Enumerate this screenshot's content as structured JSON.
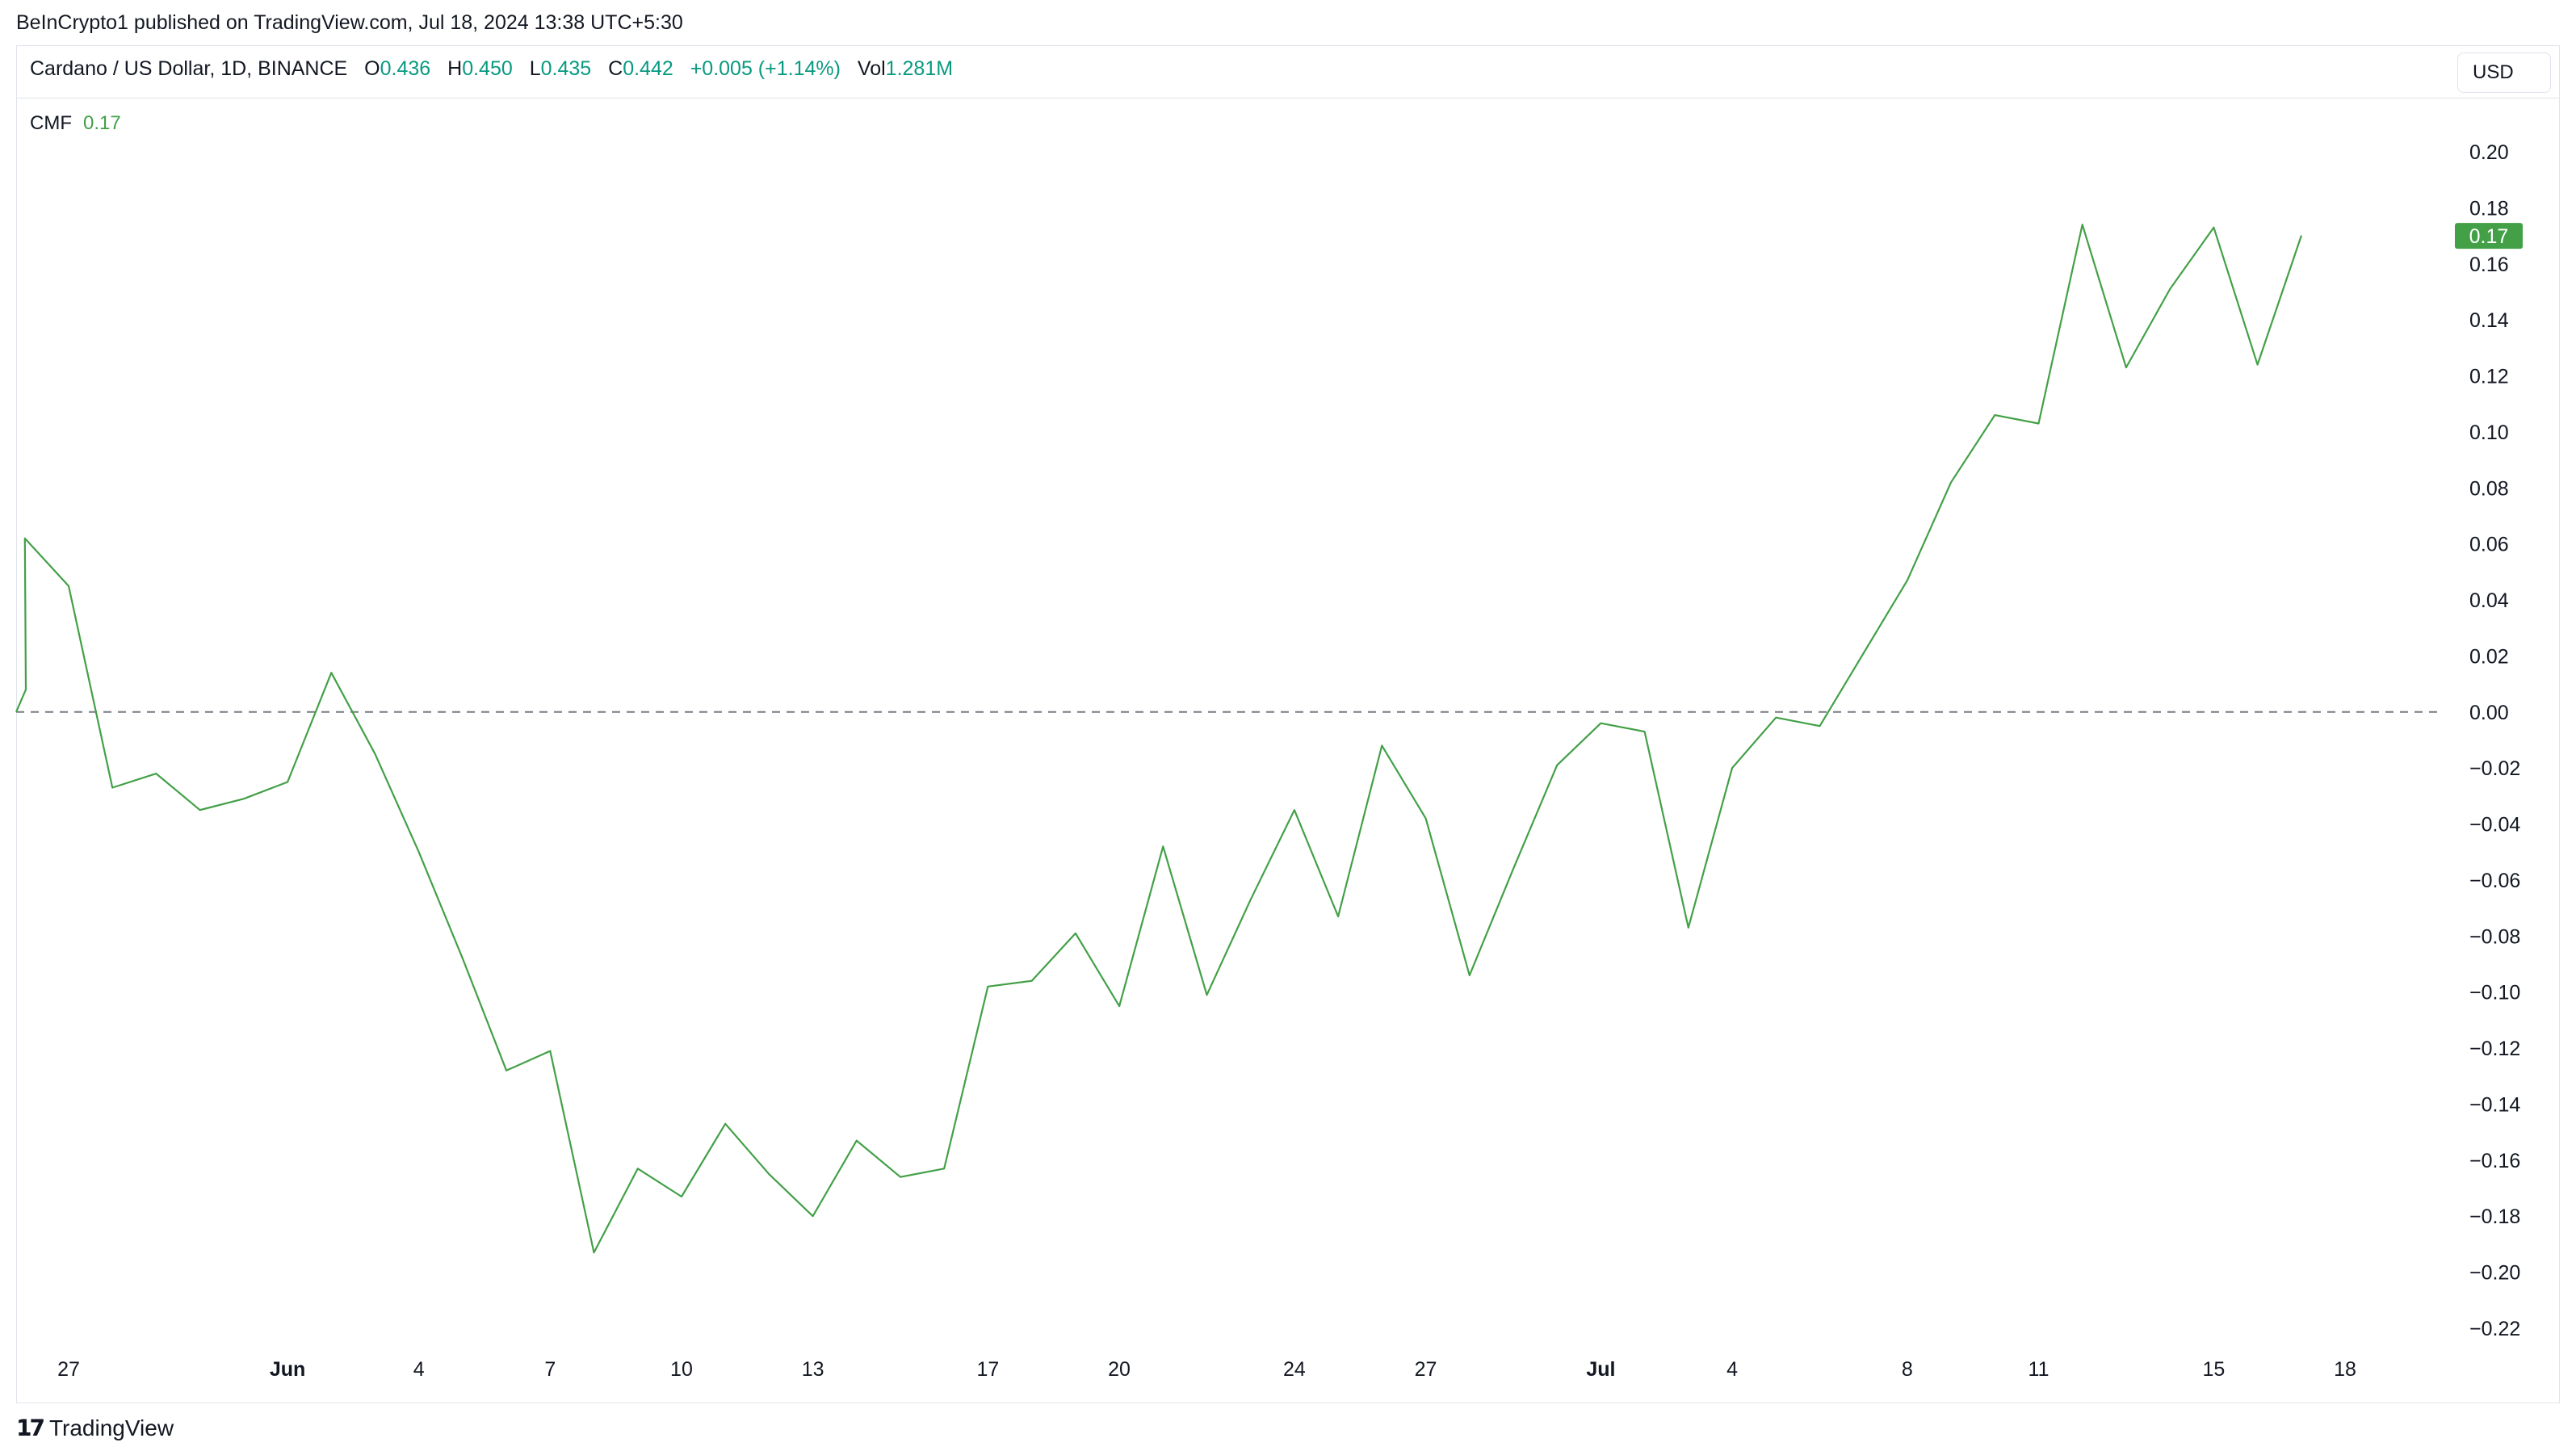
{
  "published_line": "BeInCrypto1 published on TradingView.com, Jul 18, 2024 13:38 UTC+5:30",
  "header": {
    "symbol": "Cardano / US Dollar, 1D, BINANCE",
    "open_label": "O",
    "open": "0.436",
    "high_label": "H",
    "high": "0.450",
    "low_label": "L",
    "low": "0.435",
    "close_label": "C",
    "close": "0.442",
    "change": "+0.005 (+1.14%)",
    "vol_label": "Vol",
    "vol": "1.281M"
  },
  "currency_button": "USD",
  "indicator": {
    "name": "CMF",
    "value": "0.17"
  },
  "footer": {
    "brand": "TradingView",
    "logo_icon": "tradingview-logo-icon"
  },
  "colors": {
    "line": "#43a047",
    "badge": "#43a047",
    "zero_line": "#787b86",
    "positive": "#089981"
  },
  "chart_data": {
    "type": "line",
    "title": "CMF",
    "ylim": [
      -0.23,
      0.21
    ],
    "y_ticks": [
      0.2,
      0.18,
      0.16,
      0.14,
      0.12,
      0.1,
      0.08,
      0.06,
      0.04,
      0.02,
      0.0,
      -0.02,
      -0.04,
      -0.06,
      -0.08,
      -0.1,
      -0.12,
      -0.14,
      -0.16,
      -0.18,
      -0.2,
      -0.22
    ],
    "y_tick_labels": [
      "0.20",
      "0.18",
      "0.16",
      "0.14",
      "0.12",
      "0.10",
      "0.08",
      "0.06",
      "0.04",
      "0.02",
      "0.00",
      "−0.02",
      "−0.04",
      "−0.06",
      "−0.08",
      "−0.10",
      "−0.12",
      "−0.14",
      "−0.16",
      "−0.18",
      "−0.20",
      "−0.22"
    ],
    "x_tick_labels": [
      {
        "label": "27",
        "date": "2024-05-27",
        "bold": false
      },
      {
        "label": "Jun",
        "date": "2024-06-01",
        "bold": true
      },
      {
        "label": "4",
        "date": "2024-06-04",
        "bold": false
      },
      {
        "label": "7",
        "date": "2024-06-07",
        "bold": false
      },
      {
        "label": "10",
        "date": "2024-06-10",
        "bold": false
      },
      {
        "label": "13",
        "date": "2024-06-13",
        "bold": false
      },
      {
        "label": "17",
        "date": "2024-06-17",
        "bold": false
      },
      {
        "label": "20",
        "date": "2024-06-20",
        "bold": false
      },
      {
        "label": "24",
        "date": "2024-06-24",
        "bold": false
      },
      {
        "label": "27",
        "date": "2024-06-27",
        "bold": false
      },
      {
        "label": "Jul",
        "date": "2024-07-01",
        "bold": true
      },
      {
        "label": "4",
        "date": "2024-07-04",
        "bold": false
      },
      {
        "label": "8",
        "date": "2024-07-08",
        "bold": false
      },
      {
        "label": "11",
        "date": "2024-07-11",
        "bold": false
      },
      {
        "label": "15",
        "date": "2024-07-15",
        "bold": false
      },
      {
        "label": "18",
        "date": "2024-07-18",
        "bold": false
      }
    ],
    "zero_line": 0.0,
    "last_value_label": "0.17",
    "series": [
      {
        "values": [
          {
            "x": "2024-05-26",
            "y": 0.062
          },
          {
            "x": "2024-05-27",
            "y": 0.045
          },
          {
            "x": "2024-05-28",
            "y": -0.027
          },
          {
            "x": "2024-05-29",
            "y": -0.022
          },
          {
            "x": "2024-05-30",
            "y": -0.035
          },
          {
            "x": "2024-05-31",
            "y": -0.031
          },
          {
            "x": "2024-06-01",
            "y": -0.025
          },
          {
            "x": "2024-06-02",
            "y": 0.014
          },
          {
            "x": "2024-06-03",
            "y": -0.015
          },
          {
            "x": "2024-06-04",
            "y": -0.05
          },
          {
            "x": "2024-06-05",
            "y": -0.088
          },
          {
            "x": "2024-06-06",
            "y": -0.128
          },
          {
            "x": "2024-06-07",
            "y": -0.121
          },
          {
            "x": "2024-06-08",
            "y": -0.193
          },
          {
            "x": "2024-06-09",
            "y": -0.163
          },
          {
            "x": "2024-06-10",
            "y": -0.173
          },
          {
            "x": "2024-06-11",
            "y": -0.147
          },
          {
            "x": "2024-06-12",
            "y": -0.165
          },
          {
            "x": "2024-06-13",
            "y": -0.18
          },
          {
            "x": "2024-06-14",
            "y": -0.153
          },
          {
            "x": "2024-06-15",
            "y": -0.166
          },
          {
            "x": "2024-06-16",
            "y": -0.163
          },
          {
            "x": "2024-06-17",
            "y": -0.098
          },
          {
            "x": "2024-06-18",
            "y": -0.096
          },
          {
            "x": "2024-06-19",
            "y": -0.079
          },
          {
            "x": "2024-06-20",
            "y": -0.105
          },
          {
            "x": "2024-06-21",
            "y": -0.048
          },
          {
            "x": "2024-06-22",
            "y": -0.101
          },
          {
            "x": "2024-06-23",
            "y": -0.067
          },
          {
            "x": "2024-06-24",
            "y": -0.035
          },
          {
            "x": "2024-06-25",
            "y": -0.073
          },
          {
            "x": "2024-06-26",
            "y": -0.012
          },
          {
            "x": "2024-06-27",
            "y": -0.038
          },
          {
            "x": "2024-06-28",
            "y": -0.094
          },
          {
            "x": "2024-06-29",
            "y": -0.056
          },
          {
            "x": "2024-06-30",
            "y": -0.019
          },
          {
            "x": "2024-07-01",
            "y": -0.004
          },
          {
            "x": "2024-07-02",
            "y": -0.007
          },
          {
            "x": "2024-07-03",
            "y": -0.077
          },
          {
            "x": "2024-07-04",
            "y": -0.02
          },
          {
            "x": "2024-07-05",
            "y": -0.002
          },
          {
            "x": "2024-07-06",
            "y": -0.005
          },
          {
            "x": "2024-07-07",
            "y": 0.021
          },
          {
            "x": "2024-07-08",
            "y": 0.047
          },
          {
            "x": "2024-07-09",
            "y": 0.082
          },
          {
            "x": "2024-07-10",
            "y": 0.106
          },
          {
            "x": "2024-07-11",
            "y": 0.103
          },
          {
            "x": "2024-07-12",
            "y": 0.174
          },
          {
            "x": "2024-07-13",
            "y": 0.123
          },
          {
            "x": "2024-07-14",
            "y": 0.151
          },
          {
            "x": "2024-07-15",
            "y": 0.173
          },
          {
            "x": "2024-07-16",
            "y": 0.124
          },
          {
            "x": "2024-07-17",
            "y": 0.17
          }
        ]
      }
    ]
  }
}
